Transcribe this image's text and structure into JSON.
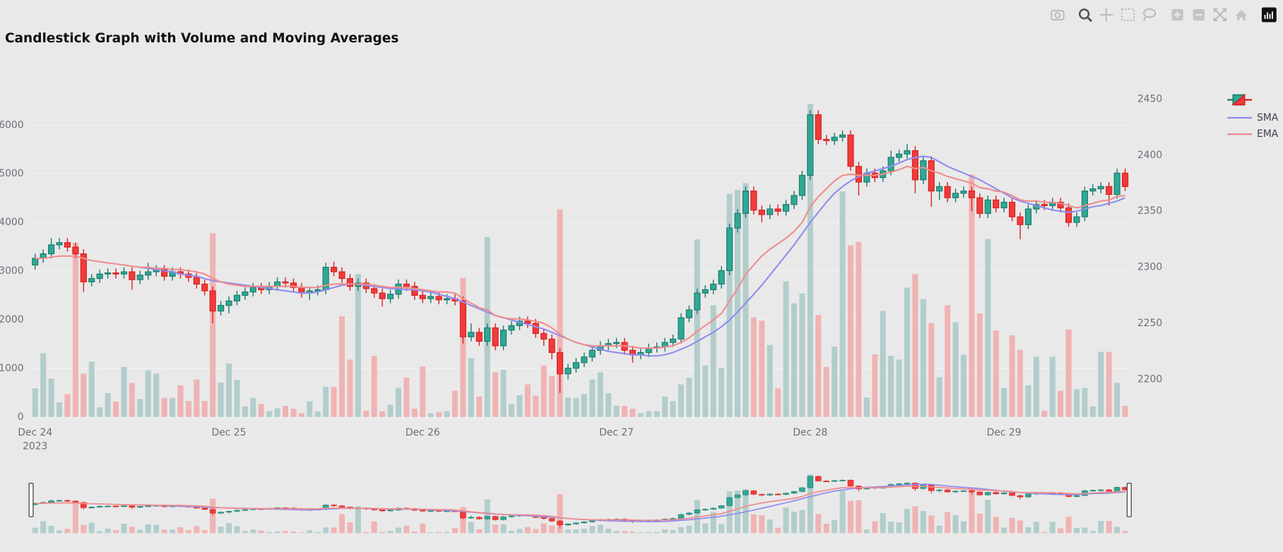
{
  "chart_data": {
    "type": "candlestick",
    "title": "Candlestick Graph with Volume and Moving Averages",
    "open": [
      2302,
      2308,
      2312,
      2320,
      2322,
      2318,
      2312,
      2287,
      2290,
      2294,
      2295,
      2294,
      2296,
      2289,
      2293,
      2296,
      2298,
      2292,
      2296,
      2294,
      2291,
      2285,
      2279,
      2261,
      2266,
      2270,
      2275,
      2278,
      2282,
      2280,
      2283,
      2287,
      2286,
      2282,
      2277,
      2279,
      2280,
      2300,
      2296,
      2290,
      2283,
      2286,
      2281,
      2277,
      2272,
      2276,
      2285,
      2283,
      2275,
      2272,
      2274,
      2271,
      2272,
      2270,
      2238,
      2242,
      2234,
      2246,
      2230,
      2244,
      2248,
      2252,
      2250,
      2241,
      2236,
      2224,
      2205,
      2210,
      2215,
      2220,
      2226,
      2230,
      2232,
      2233,
      2226,
      2222,
      2224,
      2228,
      2229,
      2233,
      2236,
      2255,
      2262,
      2277,
      2280,
      2285,
      2297,
      2335,
      2348,
      2368,
      2351,
      2347,
      2352,
      2350,
      2356,
      2364,
      2382,
      2436,
      2414,
      2413,
      2416,
      2418,
      2390,
      2376,
      2384,
      2380,
      2386,
      2398,
      2401,
      2404,
      2378,
      2395,
      2368,
      2372,
      2362,
      2366,
      2368,
      2362,
      2348,
      2360,
      2353,
      2358,
      2345,
      2338,
      2352,
      2356,
      2355,
      2358,
      2353,
      2340,
      2345,
      2368,
      2370,
      2372,
      2365,
      2384
    ],
    "high": [
      2312,
      2316,
      2326,
      2326,
      2326,
      2322,
      2316,
      2294,
      2298,
      2299,
      2299,
      2300,
      2300,
      2297,
      2304,
      2302,
      2302,
      2300,
      2300,
      2298,
      2295,
      2289,
      2283,
      2270,
      2274,
      2279,
      2282,
      2286,
      2286,
      2287,
      2291,
      2291,
      2290,
      2286,
      2283,
      2284,
      2304,
      2305,
      2300,
      2294,
      2290,
      2290,
      2285,
      2281,
      2280,
      2289,
      2289,
      2287,
      2279,
      2278,
      2278,
      2276,
      2276,
      2274,
      2250,
      2246,
      2250,
      2250,
      2248,
      2252,
      2256,
      2256,
      2254,
      2245,
      2240,
      2228,
      2214,
      2219,
      2224,
      2230,
      2234,
      2236,
      2237,
      2237,
      2230,
      2228,
      2232,
      2233,
      2237,
      2240,
      2259,
      2266,
      2281,
      2284,
      2289,
      2301,
      2339,
      2352,
      2372,
      2372,
      2355,
      2356,
      2356,
      2360,
      2368,
      2386,
      2440,
      2440,
      2418,
      2420,
      2422,
      2422,
      2394,
      2388,
      2388,
      2390,
      2404,
      2405,
      2410,
      2408,
      2399,
      2399,
      2376,
      2376,
      2370,
      2372,
      2372,
      2366,
      2364,
      2364,
      2362,
      2362,
      2349,
      2356,
      2360,
      2360,
      2362,
      2362,
      2357,
      2349,
      2372,
      2374,
      2376,
      2376,
      2388,
      2388
    ],
    "low": [
      2298,
      2304,
      2308,
      2316,
      2314,
      2308,
      2278,
      2283,
      2286,
      2290,
      2290,
      2290,
      2280,
      2285,
      2289,
      2292,
      2288,
      2288,
      2290,
      2287,
      2281,
      2275,
      2250,
      2257,
      2259,
      2266,
      2271,
      2274,
      2276,
      2276,
      2279,
      2282,
      2278,
      2273,
      2271,
      2275,
      2276,
      2292,
      2286,
      2279,
      2279,
      2277,
      2273,
      2265,
      2268,
      2272,
      2279,
      2271,
      2268,
      2268,
      2267,
      2267,
      2266,
      2232,
      2234,
      2230,
      2230,
      2226,
      2226,
      2240,
      2244,
      2246,
      2237,
      2230,
      2218,
      2188,
      2200,
      2206,
      2211,
      2216,
      2222,
      2226,
      2228,
      2222,
      2215,
      2218,
      2220,
      2224,
      2225,
      2229,
      2232,
      2251,
      2258,
      2273,
      2276,
      2281,
      2293,
      2331,
      2344,
      2347,
      2340,
      2343,
      2346,
      2346,
      2352,
      2360,
      2378,
      2410,
      2409,
      2409,
      2412,
      2386,
      2364,
      2372,
      2376,
      2376,
      2382,
      2394,
      2397,
      2366,
      2374,
      2354,
      2360,
      2358,
      2358,
      2362,
      2350,
      2344,
      2344,
      2349,
      2349,
      2341,
      2325,
      2334,
      2348,
      2351,
      2351,
      2349,
      2336,
      2336,
      2341,
      2364,
      2366,
      2355,
      2361,
      2368
    ],
    "close": [
      2308,
      2312,
      2320,
      2322,
      2318,
      2312,
      2287,
      2290,
      2294,
      2295,
      2294,
      2296,
      2289,
      2293,
      2296,
      2298,
      2292,
      2296,
      2294,
      2291,
      2285,
      2279,
      2261,
      2266,
      2270,
      2275,
      2278,
      2282,
      2280,
      2283,
      2287,
      2286,
      2282,
      2277,
      2279,
      2280,
      2300,
      2296,
      2290,
      2283,
      2286,
      2281,
      2277,
      2272,
      2276,
      2285,
      2283,
      2275,
      2272,
      2274,
      2271,
      2272,
      2270,
      2238,
      2242,
      2234,
      2246,
      2230,
      2244,
      2248,
      2252,
      2250,
      2241,
      2236,
      2224,
      2205,
      2210,
      2215,
      2220,
      2226,
      2230,
      2232,
      2233,
      2226,
      2222,
      2224,
      2228,
      2229,
      2233,
      2236,
      2255,
      2262,
      2277,
      2280,
      2285,
      2297,
      2335,
      2348,
      2368,
      2351,
      2347,
      2352,
      2350,
      2356,
      2364,
      2382,
      2436,
      2414,
      2413,
      2416,
      2418,
      2390,
      2376,
      2384,
      2380,
      2386,
      2398,
      2401,
      2404,
      2378,
      2395,
      2368,
      2372,
      2362,
      2366,
      2368,
      2362,
      2348,
      2360,
      2353,
      2358,
      2345,
      2338,
      2352,
      2356,
      2355,
      2358,
      2353,
      2340,
      2345,
      2368,
      2370,
      2372,
      2365,
      2384,
      2372
    ],
    "volume": [
      590,
      1310,
      790,
      300,
      470,
      3580,
      890,
      1140,
      200,
      490,
      320,
      1030,
      700,
      370,
      960,
      890,
      390,
      390,
      650,
      330,
      770,
      330,
      3780,
      710,
      1100,
      760,
      220,
      390,
      270,
      120,
      180,
      230,
      170,
      80,
      320,
      120,
      620,
      620,
      2070,
      1180,
      2940,
      130,
      1260,
      120,
      250,
      600,
      810,
      170,
      1040,
      80,
      100,
      120,
      540,
      2860,
      1210,
      420,
      3700,
      920,
      970,
      270,
      450,
      670,
      440,
      1060,
      840,
      4270,
      400,
      390,
      470,
      770,
      920,
      490,
      230,
      230,
      170,
      80,
      120,
      120,
      420,
      330,
      670,
      810,
      3650,
      1060,
      2300,
      1010,
      4590,
      4670,
      4810,
      2050,
      1980,
      1480,
      590,
      2790,
      2340,
      2540,
      6440,
      2100,
      1030,
      1450,
      4640,
      3530,
      3600,
      400,
      1290,
      2180,
      1260,
      1180,
      2660,
      2940,
      2420,
      1930,
      820,
      2300,
      1950,
      1280,
      4990,
      2130,
      3660,
      1780,
      600,
      1680,
      1380,
      650,
      1240,
      130,
      1240,
      540,
      1800,
      570,
      600,
      220,
      1340,
      1340,
      700,
      230
    ],
    "increasing_color": "#2fa894",
    "increasing_line": "#1b7a6c",
    "decreasing_color": "#f03b3b",
    "decreasing_line": "#d91f1f",
    "volume_increasing_color": "#b2cdcc",
    "volume_decreasing_color": "#f0b3b3",
    "series": [
      {
        "name": "SMA",
        "color": "#8f8cf0",
        "values": [
          null,
          null,
          null,
          null,
          null,
          null,
          null,
          null,
          null,
          null,
          null,
          null,
          null,
          2300,
          2299,
          2298,
          2297,
          2296,
          2294,
          2293,
          2292,
          2290,
          2288,
          2287,
          2286,
          2285,
          2284,
          2283,
          2282,
          2281,
          2280,
          2279,
          2278,
          2277,
          2277,
          2278,
          2280,
          2282,
          2284,
          2285,
          2285,
          2284,
          2283,
          2282,
          2281,
          2281,
          2280,
          2280,
          2279,
          2278,
          2276,
          2274,
          2272,
          2269,
          2266,
          2263,
          2260,
          2257,
          2255,
          2253,
          2251,
          2249,
          2247,
          2245,
          2242,
          2239,
          2236,
          2233,
          2231,
          2229,
          2227,
          2225,
          2224,
          2223,
          2222,
          2222,
          2221,
          2221,
          2222,
          2224,
          2227,
          2230,
          2234,
          2238,
          2242,
          2247,
          2253,
          2260,
          2268,
          2276,
          2284,
          2293,
          2302,
          2311,
          2320,
          2330,
          2340,
          2349,
          2358,
          2366,
          2372,
          2377,
          2381,
          2384,
          2386,
          2388,
          2390,
          2393,
          2396,
          2398,
          2399,
          2398,
          2394,
          2390,
          2387,
          2384,
          2381,
          2378,
          2374,
          2370,
          2366,
          2362,
          2359,
          2357,
          2355,
          2353,
          2351,
          2350,
          2349,
          2350,
          2352,
          2354,
          2355,
          2357,
          2359,
          2362
        ]
      },
      {
        "name": "EMA",
        "color": "#f08c8c",
        "values": [
          2308,
          2308,
          2309,
          2310,
          2310,
          2310,
          2308,
          2306,
          2305,
          2304,
          2303,
          2302,
          2301,
          2300,
          2300,
          2299,
          2299,
          2298,
          2298,
          2297,
          2296,
          2294,
          2290,
          2287,
          2285,
          2284,
          2283,
          2283,
          2283,
          2283,
          2283,
          2283,
          2283,
          2282,
          2282,
          2282,
          2284,
          2285,
          2285,
          2285,
          2285,
          2285,
          2284,
          2283,
          2282,
          2282,
          2282,
          2281,
          2280,
          2279,
          2278,
          2278,
          2277,
          2272,
          2268,
          2264,
          2262,
          2257,
          2255,
          2254,
          2254,
          2253,
          2252,
          2250,
          2246,
          2240,
          2236,
          2233,
          2231,
          2230,
          2230,
          2230,
          2230,
          2230,
          2229,
          2228,
          2228,
          2228,
          2229,
          2230,
          2233,
          2237,
          2243,
          2248,
          2253,
          2259,
          2270,
          2281,
          2294,
          2302,
          2310,
          2316,
          2321,
          2326,
          2332,
          2340,
          2354,
          2363,
          2370,
          2377,
          2382,
          2383,
          2382,
          2382,
          2382,
          2383,
          2385,
          2387,
          2390,
          2388,
          2389,
          2386,
          2384,
          2381,
          2379,
          2377,
          2375,
          2371,
          2370,
          2368,
          2367,
          2364,
          2360,
          2359,
          2359,
          2358,
          2358,
          2357,
          2355,
          2353,
          2355,
          2357,
          2359,
          2360,
          2363,
          2364
        ]
      }
    ],
    "xlim": [
      -0.5,
      135.5
    ],
    "xticks": [
      {
        "value": 0,
        "label": "Dec 24"
      },
      {
        "value": 24,
        "label": "Dec 25"
      },
      {
        "value": 48,
        "label": "Dec 26"
      },
      {
        "value": 72,
        "label": "Dec 27"
      },
      {
        "value": 96,
        "label": "Dec 28"
      },
      {
        "value": 120,
        "label": "Dec 29"
      }
    ],
    "xtick_year": "2023",
    "ylim": [
      0,
      6807
    ],
    "yticks": [
      0,
      1000,
      2000,
      3000,
      4000,
      5000,
      6000
    ],
    "y2lim": [
      2166.5,
      2461.7
    ],
    "y2ticks": [
      2200,
      2250,
      2300,
      2350,
      2400,
      2450
    ],
    "grid": true,
    "legend": "top-right",
    "rangeslider": true
  }
}
